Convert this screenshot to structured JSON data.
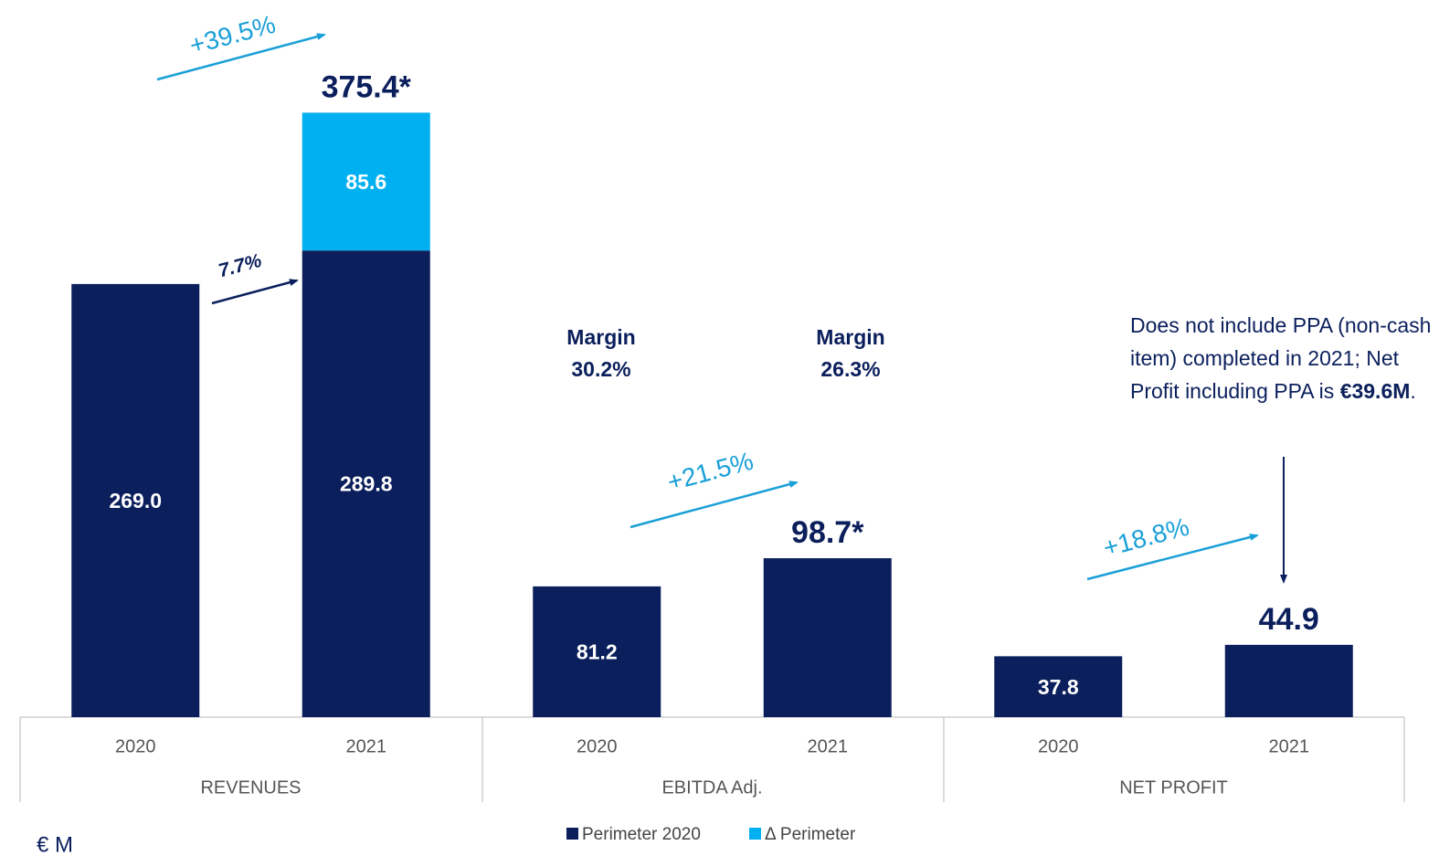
{
  "chart_data": {
    "type": "stacked_bar",
    "categories": [
      "2020",
      "2021",
      "2020",
      "2021",
      "2020",
      "2021"
    ],
    "groups": [
      "REVENUES",
      "EBITDA Adj.",
      "NET PROFIT"
    ],
    "series": [
      {
        "name": "Perimeter 2020",
        "color": "#0b1f5c",
        "values": [
          269.0,
          289.8,
          81.2,
          98.7,
          37.8,
          44.9
        ],
        "value_labels": [
          "269.0",
          "289.8",
          "81.2",
          null,
          "37.8",
          null
        ]
      },
      {
        "name": "Δ Perimeter",
        "color": "#00b0f0",
        "values": [
          null,
          85.6,
          null,
          null,
          null,
          null
        ],
        "value_labels": [
          null,
          "85.6",
          null,
          null,
          null,
          null
        ]
      }
    ],
    "total_labels": [
      null,
      "375.4*",
      null,
      "98.7*",
      null,
      "44.9"
    ],
    "ylim": [
      0,
      400
    ],
    "growth_labels": [
      "+39.5%",
      "7.7%",
      "+21.5%",
      "+18.8%"
    ],
    "margins": [
      {
        "title": "Margin",
        "value": "30.2%"
      },
      {
        "title": "Margin",
        "value": "26.3%"
      }
    ],
    "note": [
      "Does not include PPA (non-cash item) completed in 2021; Net Profit including PPA is ",
      "€39.6M",
      "."
    ],
    "unit_label": "€ M"
  }
}
